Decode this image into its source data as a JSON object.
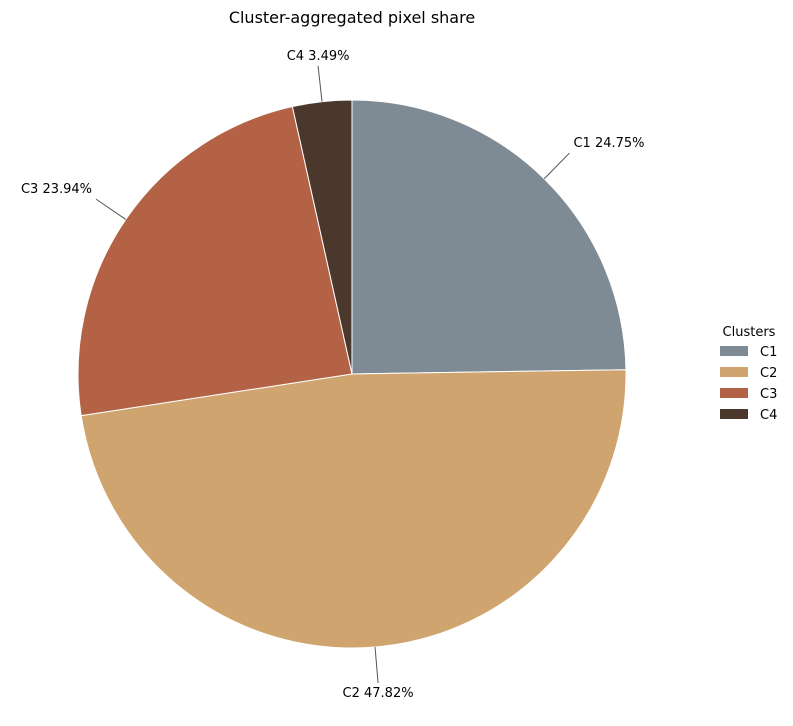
{
  "chart_data": {
    "type": "pie",
    "title": "Cluster-aggregated pixel share",
    "legend_title": "Clusters",
    "legend_placement": "right",
    "start_angle_deg": 90,
    "direction": "clockwise",
    "slices": [
      {
        "name": "C1",
        "value": 24.75,
        "label": "C1 24.75%",
        "color": "#7f8b94"
      },
      {
        "name": "C2",
        "value": 47.82,
        "label": "C2 47.82%",
        "color": "#d0a46e"
      },
      {
        "name": "C3",
        "value": 23.94,
        "label": "C3 23.94%",
        "color": "#b36246"
      },
      {
        "name": "C4",
        "value": 3.49,
        "label": "C4 3.49%",
        "color": "#4b382d"
      }
    ]
  }
}
